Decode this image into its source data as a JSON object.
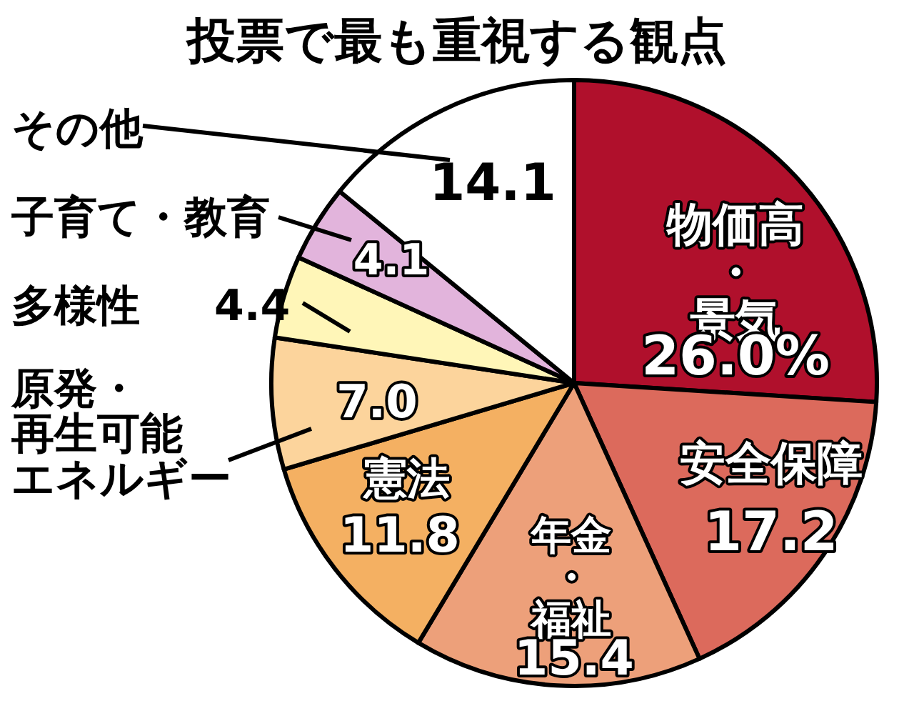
{
  "chart_data": {
    "type": "pie",
    "title": "投票で最も重視する観点",
    "categories": [
      "物価高・景気",
      "安全保障",
      "年金・福祉",
      "憲法",
      "原発・再生可能エネルギー",
      "多様性",
      "子育て・教育",
      "その他"
    ],
    "values": [
      26.0,
      17.2,
      15.4,
      11.8,
      7.0,
      4.4,
      4.1,
      14.1
    ],
    "value_labels": [
      "26.0%",
      "17.2",
      "15.4",
      "11.8",
      "7.0",
      "4.4",
      "4.1",
      "14.1"
    ],
    "colors": [
      "#b0102c",
      "#dc6a5c",
      "#eda07a",
      "#f4b062",
      "#fcd49c",
      "#fff6b8",
      "#e2b4dc",
      "#ffffff"
    ]
  }
}
